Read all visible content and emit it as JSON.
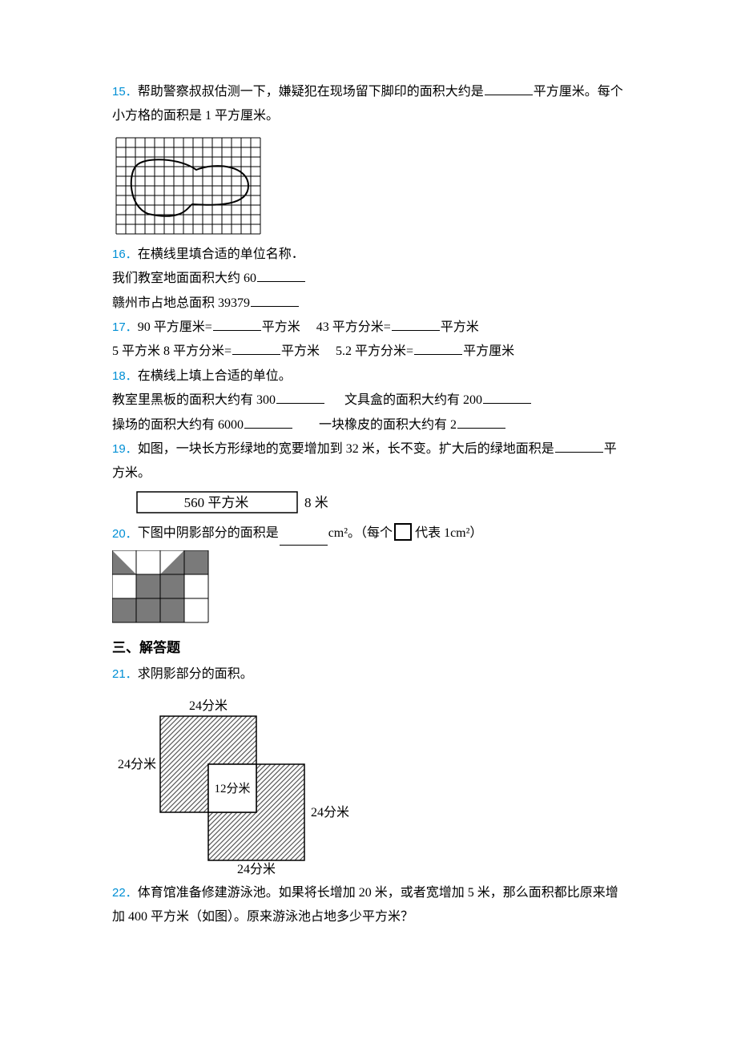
{
  "colors": {
    "num": "#008fd5",
    "text": "#000000",
    "bg": "#ffffff",
    "grid": "#000000",
    "shade_gray": "#7a7a7a",
    "hatch": "#585858",
    "rect_border": "#000000"
  },
  "q15": {
    "num": "15．",
    "text_a": "帮助警察叔叔估测一下，嫌疑犯在现场留下脚印的面积大约是",
    "text_b": "平方厘米。每个小方格的面积是 1 平方厘米。",
    "grid": {
      "cols": 15,
      "rows": 10,
      "cell": 12
    }
  },
  "q16": {
    "num": "16．",
    "l1": "在横线里填合适的单位名称．",
    "l2a": "我们教室地面面积大约 60",
    "l3a": "赣州市占地总面积 39379"
  },
  "q17": {
    "num": "17．",
    "p1a": "90 平方厘米=",
    "p1b": "平方米",
    "p2a": "43 平方分米=",
    "p2b": "平方米",
    "p3a": "5 平方米 8 平方分米=",
    "p3b": "平方米",
    "p4a": "5.2 平方分米=",
    "p4b": "平方厘米"
  },
  "q18": {
    "num": "18．",
    "l1": "在横线上填上合适的单位。",
    "p1a": "教室里黑板的面积大约有 300",
    "p2a": "文具盒的面积大约有 200",
    "p3a": "操场的面积大约有 6000",
    "p4a": "一块橡皮的面积大约有 2"
  },
  "q19": {
    "num": "19．",
    "t1": "如图，一块长方形绿地的宽要增加到 32 米，长不变。扩大后的绿地面积是",
    "t2": "平方米。",
    "box_label": "560 平方米",
    "side_label": "8 米"
  },
  "q20": {
    "num": "20．",
    "t1": "下图中阴影部分的面积是",
    "t2": " cm²。（每个 ",
    "t3": "代表 1cm²）",
    "grid": {
      "cell": 30,
      "cols": 4,
      "rows": 3
    },
    "icon_cell": 20
  },
  "sec3": "三、解答题",
  "q21": {
    "num": "21．",
    "t1": "求阴影部分的面积。",
    "labels": {
      "top": "24分米",
      "left": "24分米",
      "inner": "12分米",
      "right": "24分米",
      "bottom": "24分米"
    }
  },
  "q22": {
    "num": "22．",
    "t1": "体育馆准备修建游泳池。如果将长增加 20 米，或者宽增加 5 米，那么面积都比原来增加 400 平方米（如图）。原来游泳池占地多少平方米？"
  }
}
